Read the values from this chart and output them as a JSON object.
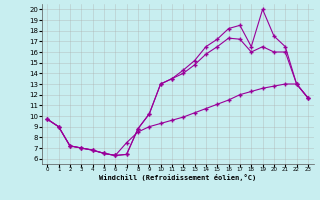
{
  "xlabel": "Windchill (Refroidissement éolien,°C)",
  "bg_color": "#c8eef0",
  "line_color": "#990099",
  "grid_color": "#aaaaaa",
  "xlim": [
    -0.5,
    23.5
  ],
  "ylim": [
    5.5,
    20.5
  ],
  "xticks": [
    0,
    1,
    2,
    3,
    4,
    5,
    6,
    7,
    8,
    9,
    10,
    11,
    12,
    13,
    14,
    15,
    16,
    17,
    18,
    19,
    20,
    21,
    22,
    23
  ],
  "yticks": [
    6,
    7,
    8,
    9,
    10,
    11,
    12,
    13,
    14,
    15,
    16,
    17,
    18,
    19,
    20
  ],
  "curve_upper_x": [
    0,
    1,
    2,
    3,
    4,
    5,
    6,
    7,
    8,
    9,
    10,
    11,
    12,
    13,
    14,
    15,
    16,
    17,
    18,
    19,
    20,
    21,
    22,
    23
  ],
  "curve_upper_y": [
    9.7,
    9.0,
    7.2,
    7.0,
    6.8,
    6.5,
    6.3,
    6.4,
    8.8,
    10.2,
    13.0,
    13.5,
    14.3,
    15.2,
    16.5,
    17.2,
    18.2,
    18.5,
    16.5,
    20.0,
    17.5,
    16.5,
    13.0,
    11.7
  ],
  "curve_mid_x": [
    0,
    1,
    2,
    3,
    4,
    5,
    6,
    7,
    8,
    9,
    10,
    11,
    12,
    13,
    14,
    15,
    16,
    17,
    18,
    19,
    20,
    21,
    22,
    23
  ],
  "curve_mid_y": [
    9.7,
    9.0,
    7.2,
    7.0,
    6.8,
    6.5,
    6.3,
    6.4,
    8.8,
    10.2,
    13.0,
    13.5,
    14.0,
    14.8,
    15.8,
    16.5,
    17.3,
    17.2,
    16.0,
    16.5,
    16.0,
    16.0,
    13.0,
    11.7
  ],
  "curve_lower_x": [
    0,
    1,
    2,
    3,
    4,
    5,
    6,
    7,
    8,
    9,
    10,
    11,
    12,
    13,
    14,
    15,
    16,
    17,
    18,
    19,
    20,
    21,
    22,
    23
  ],
  "curve_lower_y": [
    9.7,
    9.0,
    7.2,
    7.0,
    6.8,
    6.5,
    6.3,
    7.5,
    8.5,
    9.0,
    9.3,
    9.6,
    9.9,
    10.3,
    10.7,
    11.1,
    11.5,
    12.0,
    12.3,
    12.6,
    12.8,
    13.0,
    13.0,
    11.7
  ]
}
